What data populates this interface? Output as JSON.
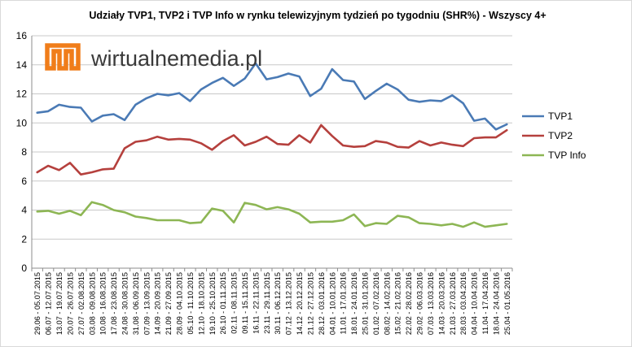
{
  "chart_data": {
    "type": "line",
    "title": "Udziały TVP1, TVP2 i TVP Info  w rynku telewizyjnym tydzień po tygodniu (SHR%) - Wszyscy 4+",
    "xlabel": "",
    "ylabel": "",
    "ylim": [
      0,
      16
    ],
    "yticks": [
      0,
      2,
      4,
      6,
      8,
      10,
      12,
      14,
      16
    ],
    "grid": true,
    "legend_position": "right",
    "categories": [
      "29.06 - 05.07.2015",
      "06.07 - 12.07.2015",
      "13.07 - 19.07.2015",
      "20.07 - 26.07.2015",
      "27.07 - 02.08.2015",
      "03.08 - 09.08.2015",
      "10.08 - 16.08.2015",
      "17.08 - 23.08.2015",
      "24.08 - 30.08.2015",
      "31.08 - 06.09.2015",
      "07.09 - 13.09.2015",
      "14.09 - 20.09.2015",
      "21.09 - 27.09.2015",
      "28.09 - 04.10.2015",
      "05.10 - 11.10.2015",
      "12.10 - 18.10.2015",
      "19.10 - 25.10.2015",
      "26.10 - 01.11.2015",
      "02.11 - 08.11.2015",
      "09.11 - 15.11.2015",
      "16.11 - 22.11.2015",
      "23.11 - 29.11.2015",
      "30.11 - 06.12.2015",
      "07.12 - 13.12.2015",
      "14.12 - 20.12.2015",
      "21.12 - 27.12.2015",
      "28.12 - 03.01.2016",
      "04.01 - 10.01.2016",
      "11.01 - 17.01.2016",
      "18.01 - 24.01.2016",
      "25.01 - 31.01.2016",
      "01.02 - 07.02.2016",
      "08.02 - 14.02.2016",
      "15.02 - 21.02.2016",
      "22.02 - 28.02.2016",
      "29.02 - 06.03.2016",
      "07.03 - 13.03.2016",
      "14.03 - 20.03.2016",
      "21.03 - 27.03.2016",
      "28.03 - 03.04.2016",
      "04.04 - 10.04.2016",
      "11.04 - 17.04.2016",
      "18.04 - 24.04.2016",
      "25.04 - 01.05.2016"
    ],
    "series": [
      {
        "name": "TVP1",
        "color": "#4a7ab5",
        "values": [
          10.7,
          10.8,
          11.25,
          11.1,
          11.05,
          10.1,
          10.5,
          10.6,
          10.2,
          11.25,
          11.7,
          12.0,
          11.9,
          12.05,
          11.5,
          12.3,
          12.75,
          13.1,
          12.55,
          13.05,
          14.1,
          13.0,
          13.15,
          13.4,
          13.2,
          11.85,
          12.35,
          13.7,
          12.95,
          12.85,
          11.65,
          12.2,
          12.7,
          12.3,
          11.6,
          11.45,
          11.55,
          11.5,
          11.9,
          11.35,
          10.15,
          10.3,
          9.55,
          9.9
        ]
      },
      {
        "name": "TVP2",
        "color": "#b5403d",
        "values": [
          6.6,
          7.05,
          6.75,
          7.25,
          6.45,
          6.6,
          6.8,
          6.85,
          8.25,
          8.7,
          8.8,
          9.05,
          8.85,
          8.9,
          8.85,
          8.6,
          8.15,
          8.75,
          9.15,
          8.45,
          8.7,
          9.05,
          8.55,
          8.5,
          9.15,
          8.65,
          9.85,
          9.1,
          8.45,
          8.35,
          8.4,
          8.75,
          8.65,
          8.35,
          8.3,
          8.75,
          8.45,
          8.65,
          8.5,
          8.4,
          8.95,
          9.0,
          9.0,
          9.5
        ]
      },
      {
        "name": "TVP Info",
        "color": "#8db654",
        "values": [
          3.9,
          3.95,
          3.75,
          3.95,
          3.65,
          4.55,
          4.35,
          4.0,
          3.85,
          3.55,
          3.45,
          3.3,
          3.3,
          3.3,
          3.1,
          3.15,
          4.1,
          3.95,
          3.15,
          4.5,
          4.35,
          4.05,
          4.2,
          4.05,
          3.75,
          3.15,
          3.2,
          3.2,
          3.3,
          3.7,
          2.9,
          3.1,
          3.05,
          3.6,
          3.5,
          3.1,
          3.05,
          2.95,
          3.05,
          2.85,
          3.15,
          2.85,
          2.95,
          3.05
        ]
      }
    ]
  },
  "watermark": {
    "logo_text": "wirtualnemedia.pl",
    "logo_color": "#f07d1a"
  }
}
